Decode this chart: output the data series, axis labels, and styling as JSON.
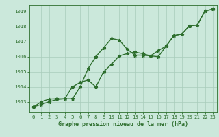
{
  "title": "Graphe pression niveau de la mer (hPa)",
  "bg_color": "#cbe8db",
  "line_color": "#2d6e2d",
  "grid_color": "#a8ccbb",
  "x_values": [
    0,
    1,
    2,
    3,
    4,
    5,
    6,
    7,
    8,
    9,
    10,
    11,
    12,
    13,
    14,
    15,
    16,
    17,
    18,
    19,
    20,
    21,
    22,
    23
  ],
  "series1": [
    1012.65,
    1012.82,
    1013.0,
    1013.15,
    1013.2,
    1013.2,
    1014.0,
    1015.2,
    1016.0,
    1016.6,
    1017.2,
    1017.1,
    1016.5,
    1016.1,
    1016.1,
    1016.05,
    1016.0,
    1016.7,
    1017.4,
    1017.5,
    1018.05,
    1018.1,
    1019.05,
    1019.15
  ],
  "series2": [
    1012.65,
    1013.0,
    1013.18,
    1013.2,
    1013.2,
    1014.0,
    1014.3,
    1014.45,
    1014.0,
    1015.0,
    1015.5,
    1016.05,
    1016.2,
    1016.3,
    1016.2,
    1016.05,
    1016.4,
    1016.7,
    1017.4,
    1017.5,
    1018.05,
    1018.1,
    1019.05,
    1019.15
  ],
  "ylim": [
    1012.3,
    1019.4
  ],
  "yticks": [
    1013,
    1014,
    1015,
    1016,
    1017,
    1018,
    1019
  ],
  "xlim": [
    -0.5,
    23.5
  ],
  "xticks": [
    0,
    1,
    2,
    3,
    4,
    5,
    6,
    7,
    8,
    9,
    10,
    11,
    12,
    13,
    14,
    15,
    16,
    17,
    18,
    19,
    20,
    21,
    22,
    23
  ],
  "marker": "*",
  "markersize": 3.5,
  "linewidth": 1.0,
  "xlabel_fontsize": 6.0,
  "tick_fontsize": 5.2
}
